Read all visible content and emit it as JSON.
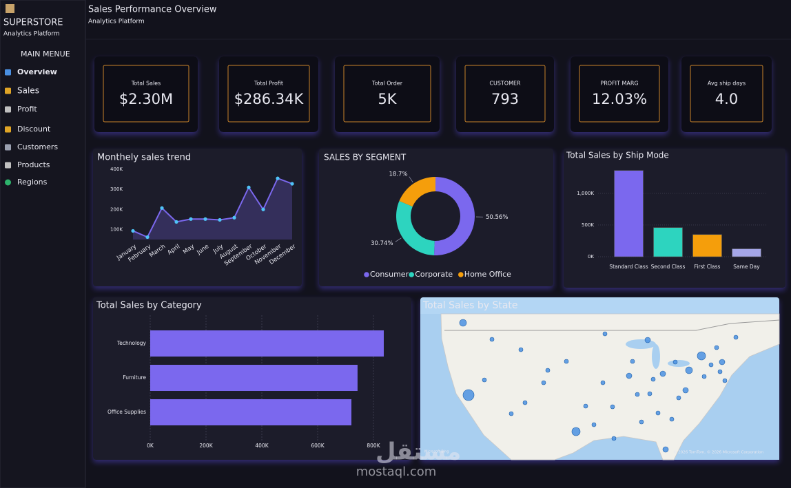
{
  "sidebar": {
    "brand": "SUPERSTORE",
    "tagline": "Analytics Platform",
    "menu_title": "MAIN MENUE",
    "items": [
      "Overview",
      "Sales",
      "Profit",
      "Discount",
      "Customers",
      "Products",
      "Regions"
    ]
  },
  "header": {
    "title": "Sales Performance Overview",
    "subtitle": "Analytics Platform"
  },
  "kpis": [
    {
      "label": "Total Sales",
      "value": "$2.30M",
      "color": "#ffffff"
    },
    {
      "label": "Total Profit",
      "value": "$286.34K",
      "color": "#2dd4bf"
    },
    {
      "label": "Total Order",
      "value": "5K",
      "color": "#f59e0b"
    },
    {
      "label": "CUSTOMER",
      "value": "793",
      "color": "#60a5fa"
    },
    {
      "label": "PROFIT MARG",
      "value": "12.03%",
      "color": "#2dd4bf"
    },
    {
      "label": "Avg ship days",
      "value": "4.0",
      "color": "#e8892c"
    }
  ],
  "chart_data": [
    {
      "type": "line",
      "title": "Monthely sales trend",
      "categories": [
        "January",
        "February",
        "March",
        "April",
        "May",
        "June",
        "July",
        "August",
        "September",
        "October",
        "November",
        "December"
      ],
      "values": [
        93000,
        62000,
        207000,
        138000,
        152000,
        152000,
        148000,
        159000,
        310000,
        200000,
        355000,
        328000
      ],
      "color": "#7b68ee",
      "marker_color": "#4fc3f7",
      "ylim": [
        50000,
        400000
      ],
      "yticks": [
        {
          "value": 100000,
          "label": "100K"
        },
        {
          "value": 200000,
          "label": "200K"
        },
        {
          "value": 300000,
          "label": "300K"
        },
        {
          "value": 400000,
          "label": "400K"
        }
      ]
    },
    {
      "type": "donut",
      "title": "SALES BY SEGMENT",
      "labels": [
        "Consumer",
        "Corporate",
        "Home Office"
      ],
      "values": [
        50.56,
        30.74,
        18.7
      ],
      "value_labels": [
        "50.56%",
        "30.74%",
        "18.7%"
      ],
      "colors": [
        "#7b68ee",
        "#2dd4bf",
        "#f59e0b"
      ]
    },
    {
      "type": "bar",
      "title": "Total Sales by Ship Mode",
      "categories": [
        "Standard Class",
        "Second Class",
        "First Class",
        "Same Day"
      ],
      "values": [
        1360000,
        460000,
        350000,
        125000
      ],
      "colors": [
        "#7b68ee",
        "#2dd4bf",
        "#f59e0b",
        "#a5a6e8"
      ],
      "ylim": [
        0,
        1400000
      ],
      "yticks": [
        {
          "value": 0,
          "label": "0K"
        },
        {
          "value": 500000,
          "label": "500K"
        },
        {
          "value": 1000000,
          "label": "1,000K"
        }
      ],
      "grid": true
    },
    {
      "type": "hbar",
      "title": "Total Sales by Category",
      "categories": [
        "Technology",
        "Furniture",
        "Office Supplies"
      ],
      "values": [
        837000,
        743000,
        721000
      ],
      "color": "#7b68ee",
      "xlim": [
        0,
        900000
      ],
      "xticks": [
        {
          "value": 0,
          "label": "0K"
        },
        {
          "value": 200000,
          "label": "200K"
        },
        {
          "value": 400000,
          "label": "400K"
        },
        {
          "value": 600000,
          "label": "600K"
        },
        {
          "value": 800000,
          "label": "800K"
        }
      ],
      "grid": true
    },
    {
      "type": "map",
      "title": "Total Sales by State",
      "provider": "Microsoft Bing",
      "attribution": "© 2026 TomTom, © 2026 Microsoft Corporation",
      "bubble_color": "#4a90e2"
    }
  ],
  "watermark": [
    "مستقل",
    "mostaql.com"
  ]
}
